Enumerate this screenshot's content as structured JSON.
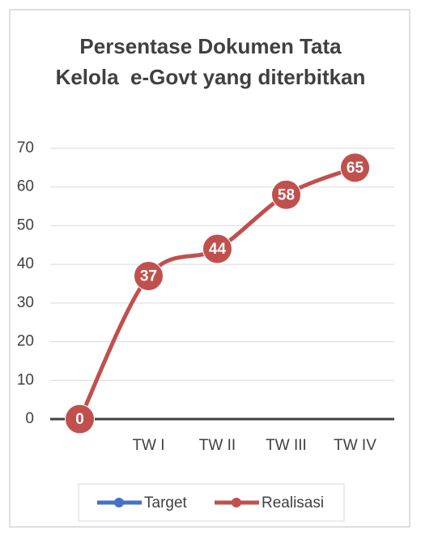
{
  "chart_data": {
    "type": "line",
    "title": "Persentase Dokumen Tata Kelola  e-Govt yang diterbitkan",
    "categories": [
      null,
      "TW I",
      "TW II",
      "TW III",
      "TW IV"
    ],
    "series": [
      {
        "name": "Target",
        "color": "#4472c4",
        "values": [
          null,
          null,
          null,
          null,
          null
        ]
      },
      {
        "name": "Realisasi",
        "color": "#c0504d",
        "values": [
          0,
          37,
          44,
          58,
          65
        ]
      }
    ],
    "ylim": [
      0,
      70
    ],
    "yticks": [
      0,
      10,
      20,
      30,
      40,
      50,
      60,
      70
    ],
    "grid": true,
    "legend": "bottom"
  }
}
